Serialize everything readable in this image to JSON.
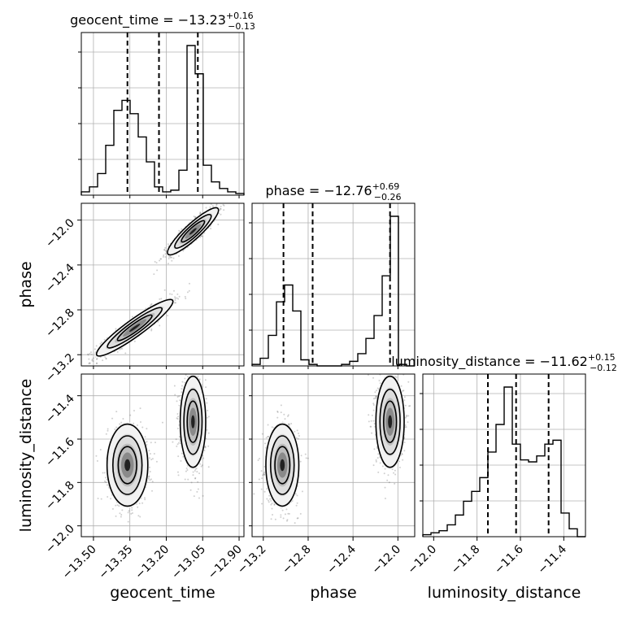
{
  "chart_data": {
    "type": "corner",
    "parameters": [
      "geocent_time",
      "phase",
      "luminosity_distance"
    ],
    "colors": {
      "line": "#000000",
      "grid": "#b0b0b0",
      "scatter": "#555555",
      "background": "#ffffff"
    },
    "grid": true,
    "diagonal": [
      {
        "param": "geocent_time",
        "title_prefix": "geocent_time = ",
        "title_value": "−13.23",
        "title_plus": "+0.16",
        "title_minus": "−0.13",
        "xlim": [
          -13.55,
          -12.88
        ],
        "bin_edges": [
          -13.55,
          -13.5165,
          -13.483,
          -13.4495,
          -13.416,
          -13.3825,
          -13.349,
          -13.3155,
          -13.282,
          -13.2485,
          -13.215,
          -13.1815,
          -13.148,
          -13.1145,
          -13.081,
          -13.0475,
          -13.014,
          -12.9805,
          -12.947,
          -12.9135,
          -12.88
        ],
        "counts": [
          0.02,
          0.05,
          0.13,
          0.3,
          0.51,
          0.57,
          0.49,
          0.35,
          0.2,
          0.05,
          0.02,
          0.03,
          0.15,
          0.9,
          0.73,
          0.18,
          0.08,
          0.04,
          0.02,
          0.01
        ],
        "quantiles": [
          -13.36,
          -13.23,
          -13.07
        ]
      },
      {
        "param": "phase",
        "title_prefix": "phase = ",
        "title_value": "−12.76",
        "title_plus": "+0.69",
        "title_minus": "−0.26",
        "xlim": [
          -13.3,
          -11.85
        ],
        "bin_edges": [
          -13.3,
          -13.2275,
          -13.155,
          -13.0825,
          -13.01,
          -12.9375,
          -12.865,
          -12.7925,
          -12.72,
          -12.6475,
          -12.575,
          -12.5025,
          -12.43,
          -12.3575,
          -12.285,
          -12.2125,
          -12.14,
          -12.0675,
          -11.995,
          -11.9225,
          -11.85
        ],
        "counts": [
          0.01,
          0.05,
          0.2,
          0.42,
          0.53,
          0.36,
          0.04,
          0.01,
          0.0,
          0.0,
          0.0,
          0.01,
          0.03,
          0.08,
          0.18,
          0.33,
          0.59,
          0.98,
          0.01,
          0.0
        ],
        "quantiles": [
          -13.02,
          -12.76,
          -12.07
        ]
      },
      {
        "param": "luminosity_distance",
        "title_prefix": "luminosity_distance = ",
        "title_value": "−11.62",
        "title_plus": "+0.15",
        "title_minus": "−0.12",
        "xlim": [
          -12.05,
          -11.3
        ],
        "bin_edges": [
          -12.05,
          -12.0125,
          -11.975,
          -11.9375,
          -11.9,
          -11.8625,
          -11.825,
          -11.7875,
          -11.75,
          -11.7125,
          -11.675,
          -11.6375,
          -11.6,
          -11.5625,
          -11.525,
          -11.4875,
          -11.45,
          -11.4125,
          -11.375,
          -11.3375,
          -11.3
        ],
        "counts": [
          0.01,
          0.02,
          0.03,
          0.06,
          0.11,
          0.18,
          0.23,
          0.3,
          0.43,
          0.57,
          0.76,
          0.47,
          0.39,
          0.38,
          0.41,
          0.47,
          0.49,
          0.12,
          0.04,
          0.0
        ],
        "quantiles": [
          -11.75,
          -11.62,
          -11.47
        ]
      }
    ],
    "pairs": [
      {
        "x": "geocent_time",
        "y": "phase",
        "xlim": [
          -13.55,
          -12.88
        ],
        "ylim": [
          -13.3,
          -11.85
        ],
        "blobs": [
          {
            "cx": -13.33,
            "cy": -12.96,
            "sx": 0.075,
            "sy": 0.12,
            "corr": 0.93,
            "n": 900
          },
          {
            "cx": -13.09,
            "cy": -12.1,
            "sx": 0.05,
            "sy": 0.1,
            "corr": 0.9,
            "n": 900
          }
        ]
      },
      {
        "x": "geocent_time",
        "y": "luminosity_distance",
        "xlim": [
          -13.55,
          -12.88
        ],
        "ylim": [
          -12.05,
          -11.3
        ],
        "blobs": [
          {
            "cx": -13.36,
            "cy": -11.72,
            "sx": 0.04,
            "sy": 0.09,
            "corr": 0.0,
            "n": 900
          },
          {
            "cx": -13.09,
            "cy": -11.52,
            "sx": 0.025,
            "sy": 0.1,
            "corr": 0.0,
            "n": 900
          }
        ]
      },
      {
        "x": "phase",
        "y": "luminosity_distance",
        "xlim": [
          -13.3,
          -11.85
        ],
        "ylim": [
          -12.05,
          -11.3
        ],
        "blobs": [
          {
            "cx": -13.03,
            "cy": -11.72,
            "sx": 0.07,
            "sy": 0.09,
            "corr": 0.0,
            "n": 900
          },
          {
            "cx": -12.07,
            "cy": -11.52,
            "sx": 0.06,
            "sy": 0.1,
            "corr": 0.0,
            "n": 900
          }
        ]
      }
    ],
    "x_ticks": [
      {
        "values": [
          -13.5,
          -13.35,
          -13.2,
          -13.05,
          -12.9
        ],
        "labels": [
          "−13.50",
          "−13.35",
          "−13.20",
          "−13.05",
          "−12.90"
        ]
      },
      {
        "values": [
          -13.2,
          -12.8,
          -12.4,
          -12.0
        ],
        "labels": [
          "−13.2",
          "−12.8",
          "−12.4",
          "−12.0"
        ]
      },
      {
        "values": [
          -12.0,
          -11.8,
          -11.6,
          -11.4
        ],
        "labels": [
          "−12.0",
          "−11.8",
          "−11.6",
          "−11.4"
        ]
      }
    ],
    "y_ticks": [
      {
        "param": "phase",
        "values": [
          -13.2,
          -12.8,
          -12.4,
          -12.0
        ],
        "labels": [
          "−13.2",
          "−12.8",
          "−12.4",
          "−12.0"
        ]
      },
      {
        "param": "luminosity_distance",
        "values": [
          -12.0,
          -11.8,
          -11.6,
          -11.4
        ],
        "labels": [
          "−12.0",
          "−11.8",
          "−11.6",
          "−11.4"
        ]
      }
    ],
    "axis_labels": {
      "x": [
        "geocent_time",
        "phase",
        "luminosity_distance"
      ],
      "y": [
        "phase",
        "luminosity_distance"
      ]
    }
  }
}
